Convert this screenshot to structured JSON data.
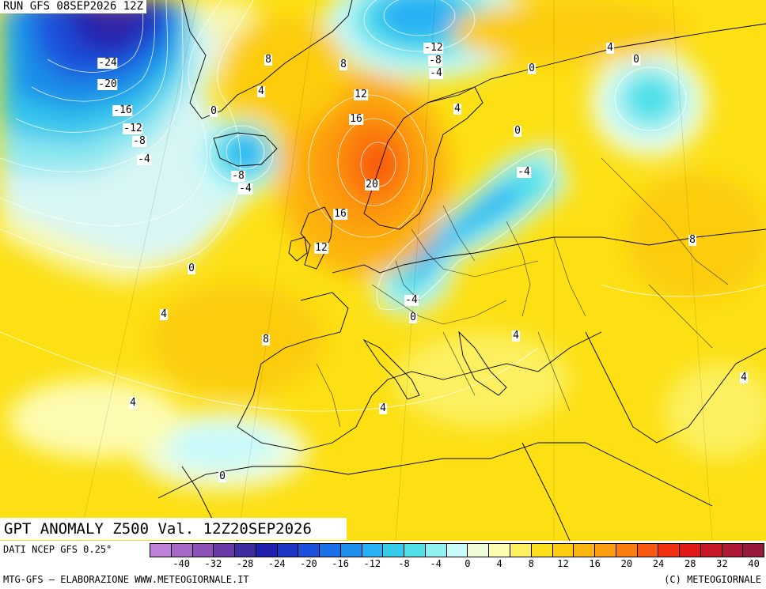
{
  "header": {
    "run_label": "RUN GFS 08SEP2026 12Z"
  },
  "title": "GPT ANOMALY Z500 Val. 12Z20SEP2026",
  "source": "DATI NCEP GFS 0.25°",
  "footer": {
    "left": "MTG-GFS — ELABORAZIONE WWW.METEOGIORNALE.IT",
    "right": "(C) METEOGIORNALE"
  },
  "contour_labels": [
    "-24",
    "-20",
    "-16",
    "-12",
    "-8",
    "-4",
    "-8",
    "-4",
    "0",
    "0",
    "4",
    "8",
    "8",
    "4",
    "12",
    "16",
    "20",
    "16",
    "12",
    "-12",
    "-8",
    "-4",
    "0",
    "4",
    "0",
    "0",
    "-4",
    "-4",
    "0",
    "8",
    "4",
    "8",
    "4",
    "4",
    "4",
    "0",
    "4"
  ],
  "legend": {
    "ticks": [
      "-40",
      "-32",
      "-28",
      "-24",
      "-20",
      "-16",
      "-12",
      "-8",
      "-4",
      "0",
      "4",
      "8",
      "12",
      "16",
      "20",
      "24",
      "28",
      "32",
      "40"
    ],
    "colors": [
      "#c080d8",
      "#a868c8",
      "#8c50b8",
      "#6c3aa8",
      "#3c2ca0",
      "#2020b0",
      "#1c34c8",
      "#1c50dc",
      "#1c70e8",
      "#2090f0",
      "#28b0f4",
      "#34cce8",
      "#50e0e8",
      "#90f0f0",
      "#c8fafa",
      "#f0fcd8",
      "#fcfcb0",
      "#fcf060",
      "#fce020",
      "#fccc10",
      "#fcb410",
      "#fc9c10",
      "#fc7c10",
      "#f85810",
      "#f03010",
      "#e01818",
      "#c81828",
      "#b01838",
      "#98183c"
    ]
  }
}
